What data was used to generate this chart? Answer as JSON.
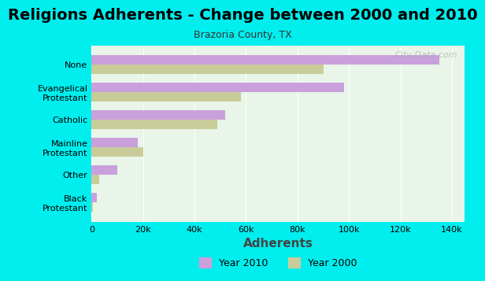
{
  "title": "Religions Adherents - Change between 2000 and 2010",
  "subtitle": "Brazoria County, TX",
  "xlabel": "Adherents",
  "categories": [
    "Black\nProtestant",
    "Other",
    "Mainline\nProtestant",
    "Catholic",
    "Evangelical\nProtestant",
    "None"
  ],
  "year2010": [
    2000,
    10000,
    18000,
    52000,
    98000,
    135000
  ],
  "year2000": [
    500,
    3000,
    20000,
    49000,
    58000,
    90000
  ],
  "color_2010": "#c9a0dc",
  "color_2000": "#c8cc99",
  "bg_color": "#00eeee",
  "plot_bg": "#e8f5e8",
  "xlim": [
    0,
    145000
  ],
  "xticks": [
    0,
    20000,
    40000,
    60000,
    80000,
    100000,
    120000,
    140000
  ],
  "xtick_labels": [
    "0",
    "20k",
    "40k",
    "60k",
    "80k",
    "100k",
    "120k",
    "140k"
  ],
  "watermark": "City-Data.com",
  "legend_year2010": "Year 2010",
  "legend_year2000": "Year 2000",
  "bar_height": 0.35,
  "title_fontsize": 14,
  "subtitle_fontsize": 9,
  "xlabel_fontsize": 11
}
